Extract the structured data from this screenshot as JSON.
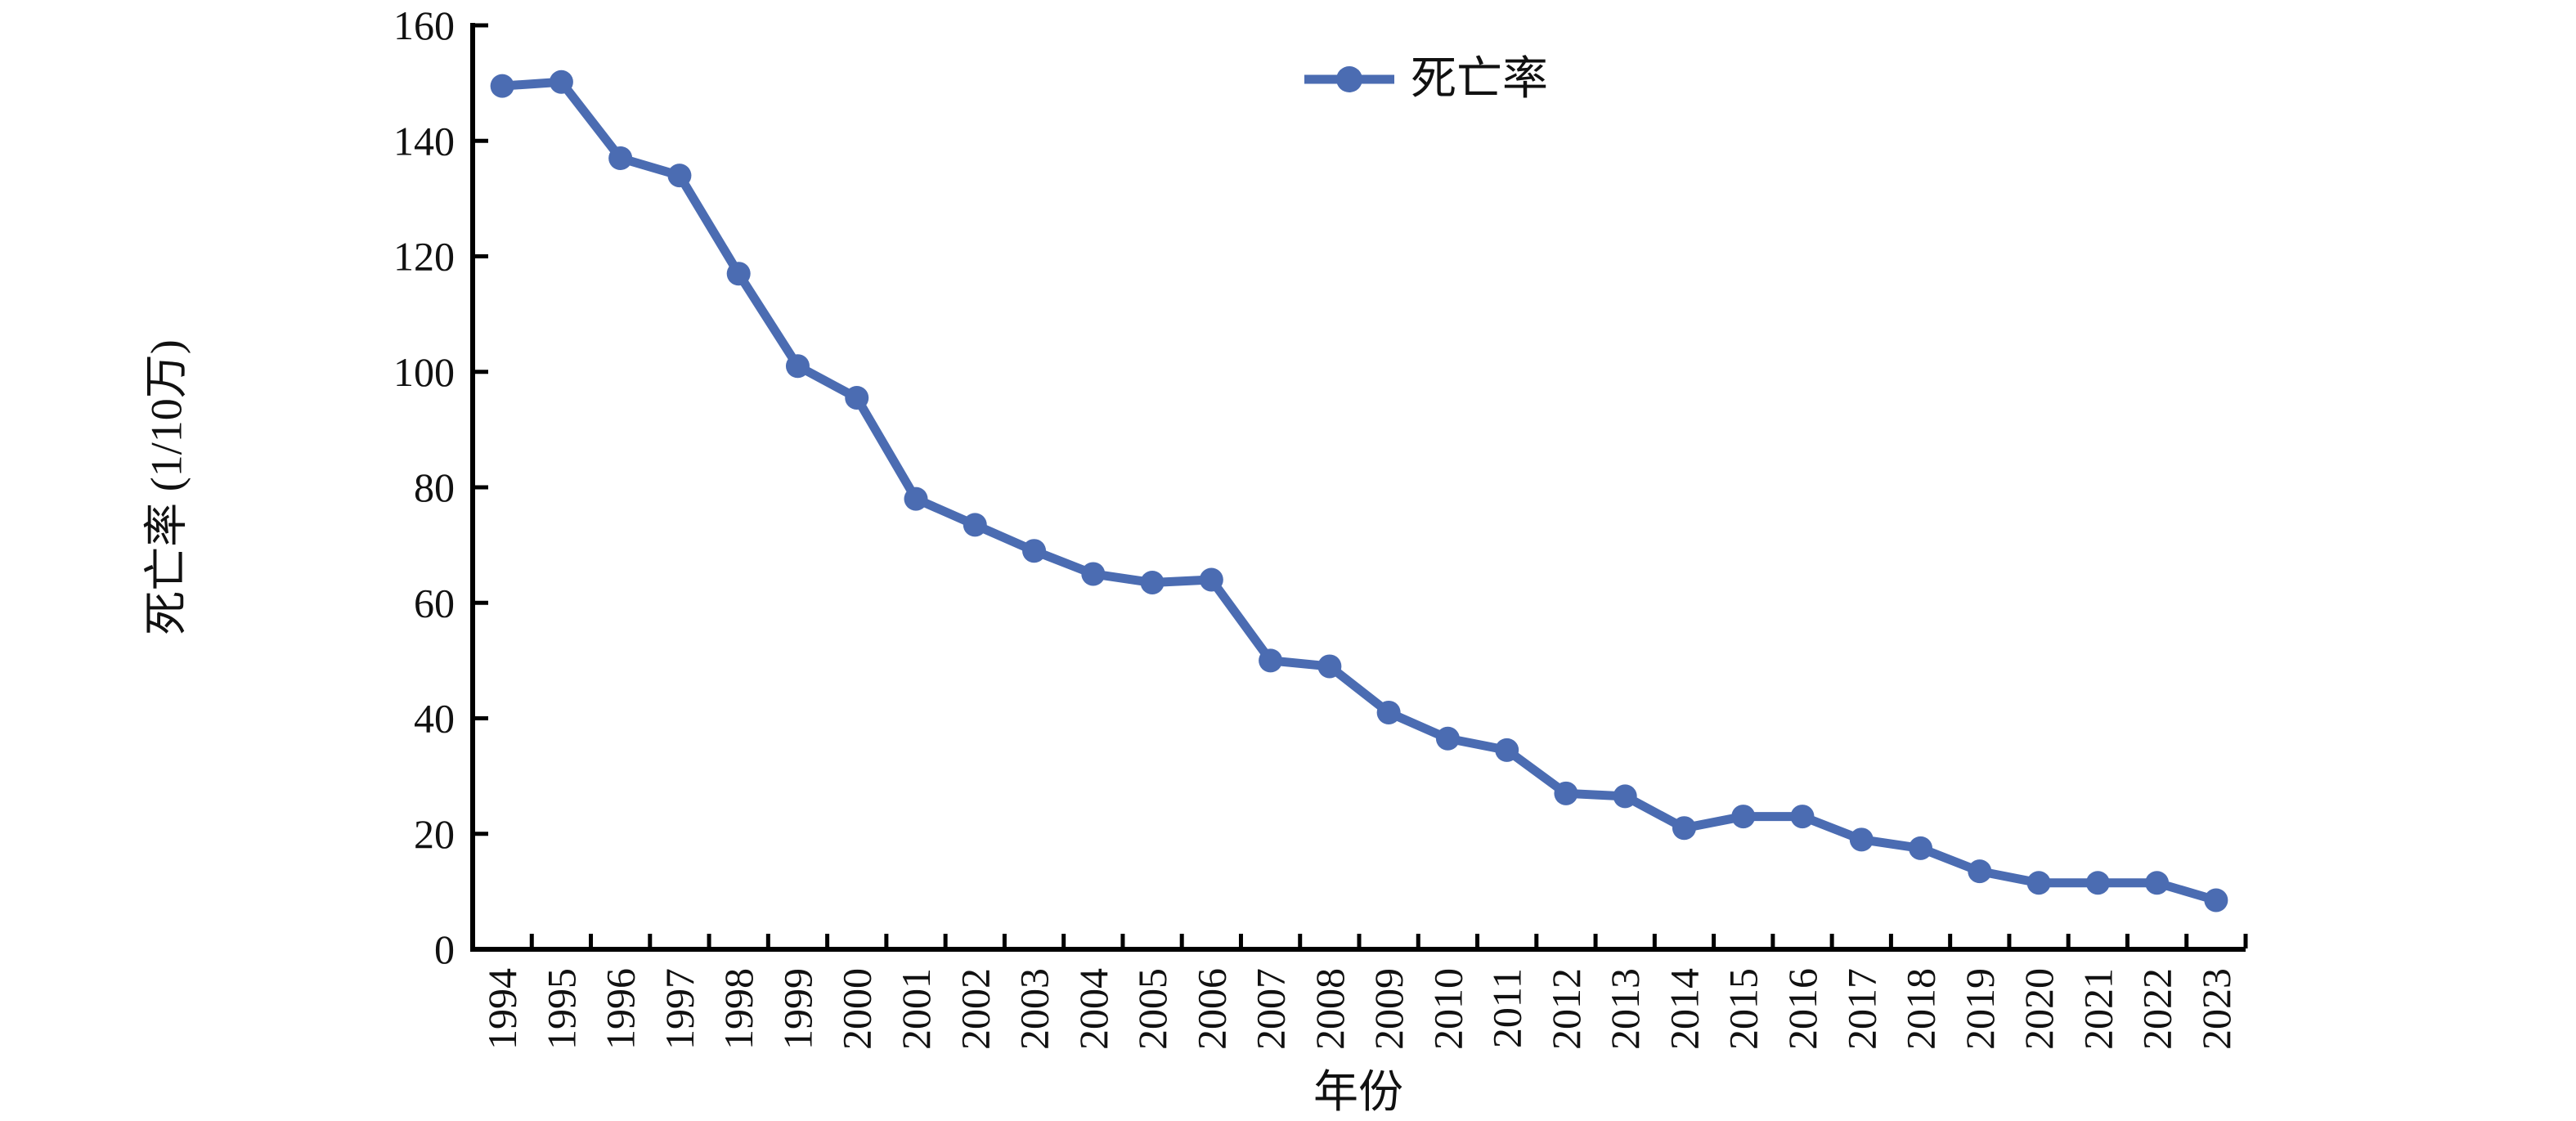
{
  "page": {
    "background": "#ffffff"
  },
  "chart_data": {
    "type": "line",
    "title": "",
    "xlabel": "年份",
    "ylabel": "死亡率 (1/10万)",
    "categories": [
      "1994",
      "1995",
      "1996",
      "1997",
      "1998",
      "1999",
      "2000",
      "2001",
      "2002",
      "2003",
      "2004",
      "2005",
      "2006",
      "2007",
      "2008",
      "2009",
      "2010",
      "2011",
      "2012",
      "2013",
      "2014",
      "2015",
      "2016",
      "2017",
      "2018",
      "2019",
      "2020",
      "2021",
      "2022",
      "2023"
    ],
    "series": [
      {
        "name": "死亡率",
        "color": "#4b6cb2",
        "marker": "circle",
        "values": [
          149.5,
          150.2,
          137,
          134,
          117,
          101,
          95.5,
          78,
          73.5,
          69,
          65,
          63.5,
          64,
          50,
          49,
          41,
          36.5,
          34.5,
          27,
          26.5,
          21,
          23,
          23,
          19,
          17.5,
          13.5,
          11.5,
          11.5,
          11.5,
          8.5
        ]
      }
    ],
    "ylim": [
      0,
      160
    ],
    "y_ticks": [
      0,
      20,
      40,
      60,
      80,
      100,
      120,
      140,
      160
    ],
    "grid": false,
    "legend_position": "top-center",
    "x_tick_style": "boundary-ticks-inward, labels rotated 90",
    "axis_color": "#000000",
    "text_color": "#111111"
  }
}
